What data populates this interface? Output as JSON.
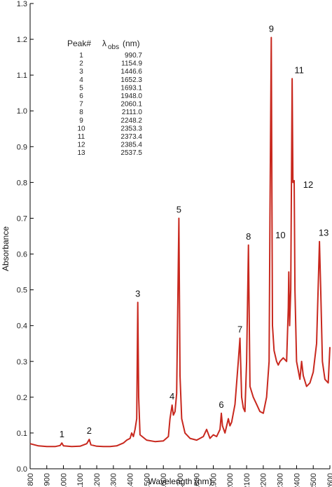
{
  "chart_data": {
    "type": "line",
    "title": "",
    "xlabel": "Wavelength (nm)",
    "ylabel": "Absorbance",
    "xlim": [
      800,
      2600
    ],
    "ylim": [
      0,
      1.3
    ],
    "x_ticks": [
      "800",
      "900",
      "1000",
      "1100",
      "1200",
      "1300",
      "1400",
      "1500",
      "1600",
      "1700",
      "1800",
      "1900",
      "2000",
      "2100",
      "2200",
      "2300",
      "2400",
      "2500",
      "2600"
    ],
    "y_ticks": [
      "0.0",
      "0.1",
      "0.2",
      "0.3",
      "0.4",
      "0.5",
      "0.6",
      "0.7",
      "0.8",
      "0.9",
      "1.0",
      "1.1",
      "1.2",
      "1.3"
    ],
    "grid": false,
    "color": "#c8281e",
    "series": [
      {
        "x": [
          800,
          850,
          900,
          950,
          980,
          990.7,
          1000,
          1050,
          1100,
          1140,
          1154.9,
          1165,
          1200,
          1240,
          1280,
          1320,
          1360,
          1380,
          1400,
          1410,
          1420,
          1430,
          1440,
          1446.6,
          1452,
          1460,
          1500,
          1550,
          1600,
          1630,
          1640,
          1652.3,
          1660,
          1670,
          1680,
          1693.1,
          1700,
          1710,
          1730,
          1760,
          1800,
          1840,
          1860,
          1880,
          1900,
          1920,
          1940,
          1948.0,
          1955,
          1970,
          1990,
          2000,
          2010,
          2030,
          2050,
          2060.1,
          2070,
          2080,
          2090,
          2100,
          2111.0,
          2120,
          2140,
          2160,
          2180,
          2200,
          2220,
          2235,
          2240,
          2248.2,
          2255,
          2265,
          2280,
          2290,
          2300,
          2320,
          2340,
          2350,
          2353.3,
          2358,
          2365,
          2373.4,
          2378,
          2385.4,
          2390,
          2400,
          2420,
          2430,
          2440,
          2460,
          2480,
          2500,
          2520,
          2537.5,
          2545,
          2555,
          2570,
          2590,
          2600
        ],
        "y": [
          0.07,
          0.064,
          0.062,
          0.062,
          0.065,
          0.072,
          0.064,
          0.062,
          0.063,
          0.07,
          0.082,
          0.067,
          0.063,
          0.062,
          0.062,
          0.064,
          0.072,
          0.08,
          0.085,
          0.1,
          0.09,
          0.11,
          0.14,
          0.465,
          0.2,
          0.095,
          0.08,
          0.076,
          0.078,
          0.09,
          0.14,
          0.178,
          0.15,
          0.16,
          0.21,
          0.7,
          0.26,
          0.14,
          0.1,
          0.085,
          0.08,
          0.09,
          0.11,
          0.085,
          0.095,
          0.09,
          0.11,
          0.155,
          0.12,
          0.1,
          0.14,
          0.12,
          0.13,
          0.18,
          0.3,
          0.365,
          0.2,
          0.17,
          0.16,
          0.3,
          0.625,
          0.23,
          0.2,
          0.18,
          0.16,
          0.155,
          0.2,
          0.3,
          0.7,
          1.205,
          0.4,
          0.33,
          0.3,
          0.29,
          0.3,
          0.31,
          0.3,
          0.45,
          0.55,
          0.4,
          0.5,
          1.09,
          0.8,
          0.805,
          0.5,
          0.3,
          0.25,
          0.3,
          0.26,
          0.23,
          0.24,
          0.27,
          0.35,
          0.635,
          0.5,
          0.3,
          0.25,
          0.24,
          0.34
        ]
      }
    ],
    "peaks": [
      {
        "label": "1",
        "x": 990.7,
        "y": 0.072
      },
      {
        "label": "2",
        "x": 1154.9,
        "y": 0.082
      },
      {
        "label": "3",
        "x": 1446.6,
        "y": 0.465
      },
      {
        "label": "4",
        "x": 1652.3,
        "y": 0.178
      },
      {
        "label": "5",
        "x": 1693.1,
        "y": 0.7
      },
      {
        "label": "6",
        "x": 1948.0,
        "y": 0.155
      },
      {
        "label": "7",
        "x": 2060.1,
        "y": 0.365
      },
      {
        "label": "8",
        "x": 2111.0,
        "y": 0.625
      },
      {
        "label": "9",
        "x": 2248.2,
        "y": 1.205
      },
      {
        "label": "10",
        "x": 2353.3,
        "y": 0.55
      },
      {
        "label": "11",
        "x": 2373.4,
        "y": 1.09
      },
      {
        "label": "12",
        "x": 2385.4,
        "y": 0.805
      },
      {
        "label": "13",
        "x": 2537.5,
        "y": 0.635
      }
    ],
    "table": {
      "col1_header": "Peak#",
      "col2_header_main": "λ",
      "col2_header_sub": "obs",
      "col2_header_unit": "(nm)",
      "rows": [
        [
          "1",
          "990.7"
        ],
        [
          "2",
          "1154.9"
        ],
        [
          "3",
          "1446.6"
        ],
        [
          "4",
          "1652.3"
        ],
        [
          "5",
          "1693.1"
        ],
        [
          "6",
          "1948.0"
        ],
        [
          "7",
          "2060.1"
        ],
        [
          "8",
          "2111.0"
        ],
        [
          "9",
          "2248.2"
        ],
        [
          "10",
          "2353.3"
        ],
        [
          "11",
          "2373.4"
        ],
        [
          "12",
          "2385.4"
        ],
        [
          "13",
          "2537.5"
        ]
      ]
    }
  }
}
